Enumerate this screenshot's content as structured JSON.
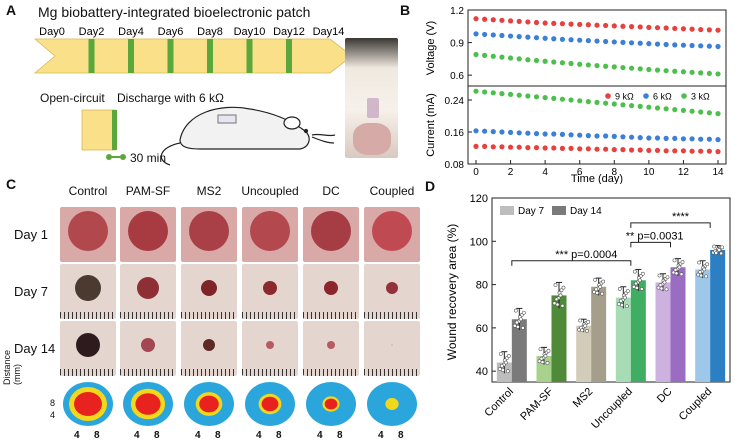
{
  "panels": {
    "a": "A",
    "b": "B",
    "c": "C",
    "d": "D"
  },
  "panel_a": {
    "title": "Mg biobattery-integrated bioelectronic patch",
    "days": [
      "Day0",
      "Day2",
      "Day4",
      "Day6",
      "Day8",
      "Day10",
      "Day12",
      "Day14"
    ],
    "open_circuit": "Open-circuit",
    "discharge": "Discharge with 6 kΩ",
    "duration": "30 min",
    "colors": {
      "arrow": "#fbe08a",
      "band": "#5aa83c"
    }
  },
  "panel_c": {
    "columns": [
      "Control",
      "PAM-SF",
      "MS2",
      "Uncoupled",
      "DC",
      "Coupled"
    ],
    "rows": [
      "Day 1",
      "Day 7",
      "Day 14"
    ],
    "distance_label": "Distance (mm)",
    "y_ticks": [
      "8",
      "4"
    ],
    "x_ticks": [
      "4",
      "8"
    ]
  },
  "chart_data": [
    {
      "type": "scatter",
      "panel": "B-top",
      "xlabel": "",
      "ylabel": "Voltage (V)",
      "xlim": [
        0,
        14
      ],
      "ylim": [
        0.5,
        1.2
      ],
      "yticks": [
        "0.6",
        "0.9",
        "1.2"
      ],
      "x": [
        0,
        0.5,
        1,
        1.5,
        2,
        2.5,
        3,
        3.5,
        4,
        4.5,
        5,
        5.5,
        6,
        6.5,
        7,
        7.5,
        8,
        8.5,
        9,
        9.5,
        10,
        10.5,
        11,
        11.5,
        12,
        12.5,
        13,
        13.5,
        14
      ],
      "series": [
        {
          "name": "9 kΩ",
          "color": "#e8403c",
          "values": [
            1.12,
            1.115,
            1.11,
            1.105,
            1.1,
            1.095,
            1.09,
            1.085,
            1.08,
            1.077,
            1.074,
            1.07,
            1.067,
            1.064,
            1.06,
            1.057,
            1.054,
            1.05,
            1.047,
            1.044,
            1.04,
            1.037,
            1.034,
            1.03,
            1.027,
            1.024,
            1.02,
            1.017,
            1.014
          ]
        },
        {
          "name": "6 kΩ",
          "color": "#3b7fd6",
          "values": [
            0.98,
            0.975,
            0.97,
            0.965,
            0.96,
            0.955,
            0.95,
            0.945,
            0.94,
            0.935,
            0.93,
            0.926,
            0.922,
            0.918,
            0.914,
            0.91,
            0.906,
            0.902,
            0.898,
            0.894,
            0.89,
            0.886,
            0.882,
            0.879,
            0.876,
            0.873,
            0.87,
            0.867,
            0.864
          ]
        },
        {
          "name": "3 kΩ",
          "color": "#4cbf4c",
          "values": [
            0.79,
            0.782,
            0.774,
            0.766,
            0.758,
            0.75,
            0.742,
            0.735,
            0.728,
            0.721,
            0.714,
            0.707,
            0.7,
            0.694,
            0.688,
            0.682,
            0.676,
            0.67,
            0.664,
            0.658,
            0.652,
            0.646,
            0.641,
            0.636,
            0.631,
            0.626,
            0.621,
            0.616,
            0.611
          ]
        }
      ]
    },
    {
      "type": "scatter",
      "panel": "B-bottom",
      "xlabel": "Time (day)",
      "ylabel": "Current (mA)",
      "xlim": [
        0,
        14
      ],
      "ylim": [
        0.08,
        0.27
      ],
      "xticks": [
        "0",
        "2",
        "4",
        "6",
        "8",
        "10",
        "12",
        "14"
      ],
      "yticks": [
        "0.08",
        "0.16",
        "0.24"
      ],
      "x": [
        0,
        0.5,
        1,
        1.5,
        2,
        2.5,
        3,
        3.5,
        4,
        4.5,
        5,
        5.5,
        6,
        6.5,
        7,
        7.5,
        8,
        8.5,
        9,
        9.5,
        10,
        10.5,
        11,
        11.5,
        12,
        12.5,
        13,
        13.5,
        14
      ],
      "legend": "top-right",
      "series": [
        {
          "name": "9 kΩ",
          "color": "#e8403c",
          "values": [
            0.124,
            0.124,
            0.123,
            0.123,
            0.122,
            0.122,
            0.121,
            0.121,
            0.12,
            0.12,
            0.119,
            0.119,
            0.118,
            0.118,
            0.117,
            0.117,
            0.116,
            0.116,
            0.115,
            0.115,
            0.114,
            0.114,
            0.113,
            0.113,
            0.113,
            0.112,
            0.112,
            0.112,
            0.111
          ]
        },
        {
          "name": "6 kΩ",
          "color": "#3b7fd6",
          "values": [
            0.163,
            0.162,
            0.161,
            0.16,
            0.159,
            0.158,
            0.157,
            0.156,
            0.155,
            0.155,
            0.154,
            0.153,
            0.152,
            0.151,
            0.15,
            0.15,
            0.149,
            0.148,
            0.147,
            0.146,
            0.145,
            0.145,
            0.144,
            0.144,
            0.143,
            0.143,
            0.142,
            0.142,
            0.141
          ]
        },
        {
          "name": "3 kΩ",
          "color": "#4cbf4c",
          "values": [
            0.262,
            0.26,
            0.258,
            0.256,
            0.254,
            0.252,
            0.25,
            0.248,
            0.246,
            0.244,
            0.242,
            0.24,
            0.238,
            0.236,
            0.234,
            0.232,
            0.23,
            0.228,
            0.226,
            0.224,
            0.222,
            0.22,
            0.218,
            0.216,
            0.214,
            0.212,
            0.21,
            0.208,
            0.206
          ]
        }
      ]
    },
    {
      "type": "bar",
      "panel": "D",
      "ylabel": "Wound recovery area (%)",
      "ylim": [
        35,
        120
      ],
      "yticks": [
        "40",
        "60",
        "80",
        "100",
        "120"
      ],
      "categories": [
        "Control",
        "PAM-SF",
        "MS2",
        "Uncoupled",
        "DC",
        "Coupled"
      ],
      "legend": "top-left",
      "series": [
        {
          "name": "Day 7",
          "values": [
            44,
            47,
            61,
            74,
            81,
            87
          ],
          "errors": [
            5,
            4,
            3,
            5,
            4,
            4
          ]
        },
        {
          "name": "Day 14",
          "values": [
            64,
            75,
            79,
            82,
            88,
            96
          ],
          "errors": [
            5,
            6,
            4,
            5,
            4,
            2
          ]
        }
      ],
      "colors": [
        [
          "#bdbdbd",
          "#7a7a7a"
        ],
        [
          "#a9d18e",
          "#4e8a37"
        ],
        [
          "#d3ccb8",
          "#a59e8a"
        ],
        [
          "#a7dcb5",
          "#3fae62"
        ],
        [
          "#cdb2e0",
          "#9a6cc2"
        ],
        [
          "#9ec8ea",
          "#2d7fc4"
        ]
      ],
      "annotations": [
        {
          "text": "*** p=0.0004"
        },
        {
          "text": "** p=0.0031"
        },
        {
          "text": "****"
        }
      ]
    }
  ]
}
